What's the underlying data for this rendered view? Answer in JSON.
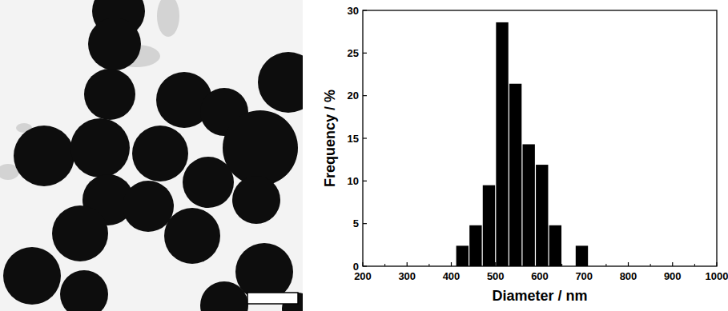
{
  "chart_data": {
    "type": "histogram",
    "x_label": "Diameter / nm",
    "y_label": "Frequency / %",
    "bins": [
      410,
      440,
      470,
      500,
      530,
      560,
      590,
      620,
      650,
      680,
      710
    ],
    "values": [
      2.4,
      4.8,
      9.5,
      28.6,
      21.4,
      14.3,
      11.9,
      4.8,
      0,
      2.4
    ],
    "color": "#000000",
    "xlim": [
      200,
      1000
    ],
    "xticks": [
      200,
      300,
      400,
      500,
      600,
      700,
      800,
      900,
      1000
    ],
    "ylim": [
      0,
      30
    ],
    "yticks": [
      0,
      5,
      10,
      15,
      20,
      25,
      30
    ],
    "grid": false
  }
}
